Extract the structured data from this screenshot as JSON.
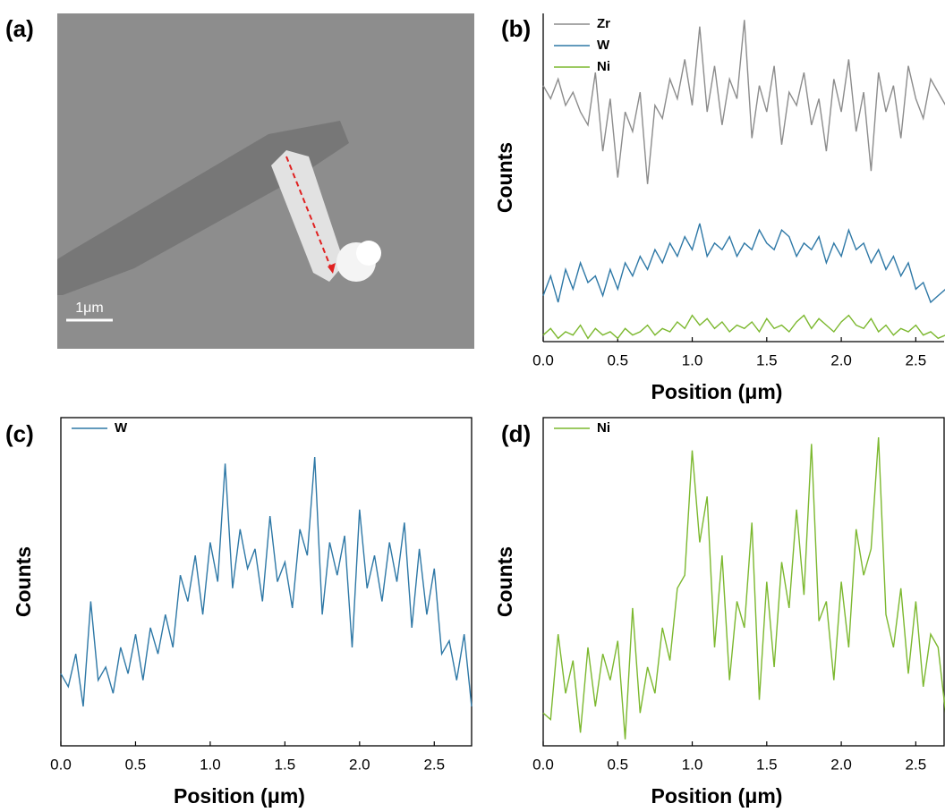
{
  "image": {
    "label": "(a)",
    "scale_bar": "1μm"
  },
  "chart_data": [
    {
      "type": "line",
      "label": "(b)",
      "xlabel": "Position (μm)",
      "ylabel": "Counts",
      "frame": false,
      "legend": "upper left",
      "xlim": [
        0,
        2.69
      ],
      "ylim": [
        0,
        100
      ],
      "xticks": [
        {
          "value": 0,
          "label": "0.0"
        },
        0.5,
        {
          "value": 1,
          "label": "1.0"
        },
        1.5,
        {
          "value": 2,
          "label": "2.0"
        },
        2.5
      ],
      "x": [
        0,
        0.05,
        0.1,
        0.15,
        0.2,
        0.25,
        0.3,
        0.35,
        0.4,
        0.45,
        0.5,
        0.55,
        0.6,
        0.65,
        0.7,
        0.75,
        0.8,
        0.85,
        0.9,
        0.95,
        1,
        1.05,
        1.1,
        1.15,
        1.2,
        1.25,
        1.3,
        1.35,
        1.4,
        1.45,
        1.5,
        1.55,
        1.6,
        1.65,
        1.7,
        1.75,
        1.8,
        1.85,
        1.9,
        1.95,
        2,
        2.05,
        2.1,
        2.15,
        2.2,
        2.25,
        2.3,
        2.35,
        2.4,
        2.45,
        2.5,
        2.55,
        2.6,
        2.65,
        2.7
      ],
      "series": [
        {
          "name": "Zr",
          "color": "#8c8c8c",
          "values": [
            78,
            74,
            80,
            72,
            76,
            70,
            66,
            82,
            58,
            74,
            50,
            70,
            64,
            76,
            48,
            72,
            68,
            80,
            74,
            86,
            72,
            96,
            70,
            84,
            66,
            80,
            74,
            98,
            62,
            78,
            70,
            84,
            60,
            76,
            72,
            82,
            66,
            74,
            58,
            80,
            70,
            86,
            64,
            76,
            52,
            82,
            70,
            78,
            62,
            84,
            74,
            68,
            80,
            76,
            72
          ]
        },
        {
          "name": "W",
          "color": "#2e78a6",
          "values": [
            14,
            20,
            12,
            22,
            16,
            24,
            18,
            20,
            14,
            22,
            16,
            24,
            20,
            26,
            22,
            28,
            24,
            30,
            26,
            32,
            28,
            36,
            26,
            30,
            28,
            32,
            26,
            30,
            28,
            34,
            30,
            28,
            34,
            32,
            26,
            30,
            28,
            32,
            24,
            30,
            26,
            34,
            28,
            30,
            24,
            28,
            22,
            26,
            20,
            24,
            16,
            18,
            12,
            14,
            16
          ]
        },
        {
          "name": "Ni",
          "color": "#7cb82f",
          "values": [
            2,
            4,
            1,
            3,
            2,
            5,
            1,
            4,
            2,
            3,
            1,
            4,
            2,
            3,
            5,
            2,
            4,
            3,
            6,
            4,
            8,
            5,
            7,
            4,
            6,
            3,
            5,
            4,
            6,
            3,
            7,
            4,
            5,
            3,
            6,
            8,
            4,
            7,
            5,
            3,
            6,
            8,
            5,
            4,
            7,
            3,
            5,
            2,
            4,
            3,
            5,
            2,
            3,
            1,
            2
          ]
        }
      ]
    },
    {
      "type": "line",
      "label": "(c)",
      "xlabel": "Position (μm)",
      "ylabel": "Counts",
      "frame": true,
      "legend": "upper left",
      "xlim": [
        0,
        2.75
      ],
      "ylim": [
        0,
        100
      ],
      "xticks": [
        {
          "value": 0,
          "label": "0.0"
        },
        0.5,
        {
          "value": 1,
          "label": "1.0"
        },
        1.5,
        {
          "value": 2,
          "label": "2.0"
        },
        2.5
      ],
      "x": [
        0,
        0.05,
        0.1,
        0.15,
        0.2,
        0.25,
        0.3,
        0.35,
        0.4,
        0.45,
        0.5,
        0.55,
        0.6,
        0.65,
        0.7,
        0.75,
        0.8,
        0.85,
        0.9,
        0.95,
        1,
        1.05,
        1.1,
        1.15,
        1.2,
        1.25,
        1.3,
        1.35,
        1.4,
        1.45,
        1.5,
        1.55,
        1.6,
        1.65,
        1.7,
        1.75,
        1.8,
        1.85,
        1.9,
        1.95,
        2,
        2.05,
        2.1,
        2.15,
        2.2,
        2.25,
        2.3,
        2.35,
        2.4,
        2.45,
        2.5,
        2.55,
        2.6,
        2.65,
        2.7,
        2.75
      ],
      "series": [
        {
          "name": "W",
          "color": "#2e78a6",
          "values": [
            22,
            18,
            28,
            12,
            44,
            20,
            24,
            16,
            30,
            22,
            34,
            20,
            36,
            28,
            40,
            30,
            52,
            44,
            58,
            40,
            62,
            50,
            86,
            48,
            66,
            54,
            60,
            44,
            70,
            50,
            56,
            42,
            66,
            58,
            88,
            40,
            62,
            52,
            64,
            30,
            72,
            48,
            58,
            44,
            62,
            50,
            68,
            36,
            60,
            40,
            54,
            28,
            32,
            20,
            34,
            12
          ]
        }
      ]
    },
    {
      "type": "line",
      "label": "(d)",
      "xlabel": "Position (μm)",
      "ylabel": "Counts",
      "frame": true,
      "legend": "upper left",
      "xlim": [
        0,
        2.69
      ],
      "ylim": [
        0,
        100
      ],
      "xticks": [
        {
          "value": 0,
          "label": "0.0"
        },
        0.5,
        {
          "value": 1,
          "label": "1.0"
        },
        1.5,
        {
          "value": 2,
          "label": "2.0"
        },
        2.5
      ],
      "x": [
        0,
        0.05,
        0.1,
        0.15,
        0.2,
        0.25,
        0.3,
        0.35,
        0.4,
        0.45,
        0.5,
        0.55,
        0.6,
        0.65,
        0.7,
        0.75,
        0.8,
        0.85,
        0.9,
        0.95,
        1,
        1.05,
        1.1,
        1.15,
        1.2,
        1.25,
        1.3,
        1.35,
        1.4,
        1.45,
        1.5,
        1.55,
        1.6,
        1.65,
        1.7,
        1.75,
        1.8,
        1.85,
        1.9,
        1.95,
        2,
        2.05,
        2.1,
        2.15,
        2.2,
        2.25,
        2.3,
        2.35,
        2.4,
        2.45,
        2.5,
        2.55,
        2.6,
        2.65,
        2.7
      ],
      "series": [
        {
          "name": "Ni",
          "color": "#7cb82f",
          "values": [
            10,
            8,
            34,
            16,
            26,
            4,
            30,
            12,
            28,
            20,
            32,
            2,
            42,
            10,
            24,
            16,
            36,
            26,
            48,
            52,
            90,
            62,
            76,
            30,
            58,
            20,
            44,
            36,
            68,
            14,
            50,
            24,
            56,
            42,
            72,
            46,
            92,
            38,
            44,
            20,
            50,
            30,
            66,
            52,
            60,
            94,
            40,
            30,
            48,
            22,
            44,
            18,
            34,
            30,
            10
          ]
        }
      ]
    }
  ]
}
